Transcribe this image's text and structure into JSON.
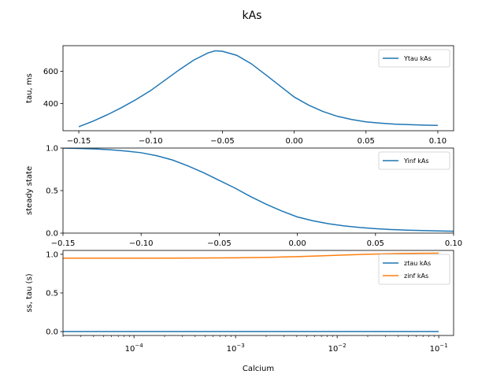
{
  "figure": {
    "title": "kAs"
  },
  "colors": {
    "series1": "#1f77b4",
    "series2": "#ff7f0e",
    "axis": "#000000",
    "legend_border": "#cccccc"
  },
  "chart_data": [
    {
      "type": "line",
      "ylabel": "tau, ms",
      "xlim": [
        -0.161,
        0.111
      ],
      "ylim": [
        230,
        760
      ],
      "xticks": [
        -0.15,
        -0.1,
        -0.05,
        0.0,
        0.05,
        0.1
      ],
      "xtick_labels": [
        "−0.15",
        "−0.10",
        "−0.05",
        "0.00",
        "0.05",
        "0.10"
      ],
      "yticks": [
        400,
        600
      ],
      "ytick_labels": [
        "400",
        "600"
      ],
      "legend": {
        "placement": "upper right",
        "entries": [
          "Ytau kAs"
        ]
      },
      "series": [
        {
          "name": "Ytau kAs",
          "color": "#1f77b4",
          "x": [
            -0.15,
            -0.14,
            -0.13,
            -0.12,
            -0.11,
            -0.1,
            -0.09,
            -0.08,
            -0.07,
            -0.06,
            -0.055,
            -0.05,
            -0.04,
            -0.03,
            -0.02,
            -0.01,
            0.0,
            0.01,
            0.02,
            0.03,
            0.04,
            0.05,
            0.06,
            0.07,
            0.08,
            0.09,
            0.1
          ],
          "y": [
            255,
            290,
            330,
            375,
            425,
            480,
            545,
            610,
            670,
            715,
            728,
            725,
            700,
            648,
            580,
            510,
            440,
            390,
            350,
            320,
            300,
            285,
            277,
            271,
            268,
            265,
            263
          ]
        }
      ]
    },
    {
      "type": "line",
      "ylabel": "steady state",
      "xlim": [
        -0.15,
        0.1
      ],
      "ylim": [
        0.0,
        1.0
      ],
      "xticks": [
        -0.15,
        -0.1,
        -0.05,
        0.0,
        0.05,
        0.1
      ],
      "xtick_labels": [
        "−0.15",
        "−0.10",
        "−0.05",
        "0.00",
        "0.05",
        "0.10"
      ],
      "yticks": [
        0.0,
        0.5,
        1.0
      ],
      "ytick_labels": [
        "0.0",
        "0.5",
        "1.0"
      ],
      "legend": {
        "placement": "upper right",
        "entries": [
          "Yinf kAs"
        ]
      },
      "series": [
        {
          "name": "Yinf kAs",
          "color": "#1f77b4",
          "x": [
            -0.15,
            -0.14,
            -0.13,
            -0.12,
            -0.11,
            -0.1,
            -0.09,
            -0.08,
            -0.07,
            -0.06,
            -0.05,
            -0.04,
            -0.03,
            -0.02,
            -0.01,
            0.0,
            0.01,
            0.02,
            0.03,
            0.04,
            0.05,
            0.06,
            0.07,
            0.08,
            0.09,
            0.1
          ],
          "y": [
            1.0,
            0.995,
            0.99,
            0.98,
            0.965,
            0.945,
            0.91,
            0.86,
            0.79,
            0.71,
            0.62,
            0.53,
            0.43,
            0.34,
            0.26,
            0.19,
            0.145,
            0.11,
            0.085,
            0.066,
            0.052,
            0.042,
            0.035,
            0.03,
            0.026,
            0.022
          ]
        }
      ]
    },
    {
      "type": "line",
      "ylabel": "ss, tau (s)",
      "xlabel": "Calcium",
      "xscale": "log",
      "xlim": [
        2e-05,
        0.14
      ],
      "ylim": [
        -0.05,
        1.05
      ],
      "xticks": [
        0.0001,
        0.001,
        0.01,
        0.1
      ],
      "xtick_labels": [
        [
          "10",
          "−4"
        ],
        [
          "10",
          "−3"
        ],
        [
          "10",
          "−2"
        ],
        [
          "10",
          "−1"
        ]
      ],
      "yticks": [
        0.0,
        0.5,
        1.0
      ],
      "ytick_labels": [
        "0.0",
        "0.5",
        "1.0"
      ],
      "legend": {
        "placement": "upper right",
        "entries": [
          "ztau kAs",
          "zinf kAs"
        ]
      },
      "series": [
        {
          "name": "ztau kAs",
          "color": "#1f77b4",
          "x": [
            2e-05,
            0.0001,
            0.001,
            0.01,
            0.1
          ],
          "y": [
            0.001,
            0.001,
            0.001,
            0.001,
            0.001
          ]
        },
        {
          "name": "zinf kAs",
          "color": "#ff7f0e",
          "x": [
            2e-05,
            0.0001,
            0.0003,
            0.001,
            0.002,
            0.004,
            0.007,
            0.01,
            0.02,
            0.04,
            0.07,
            0.1
          ],
          "y": [
            0.95,
            0.95,
            0.951,
            0.954,
            0.96,
            0.97,
            0.98,
            0.988,
            1.0,
            1.01,
            1.013,
            1.015
          ]
        }
      ]
    }
  ]
}
